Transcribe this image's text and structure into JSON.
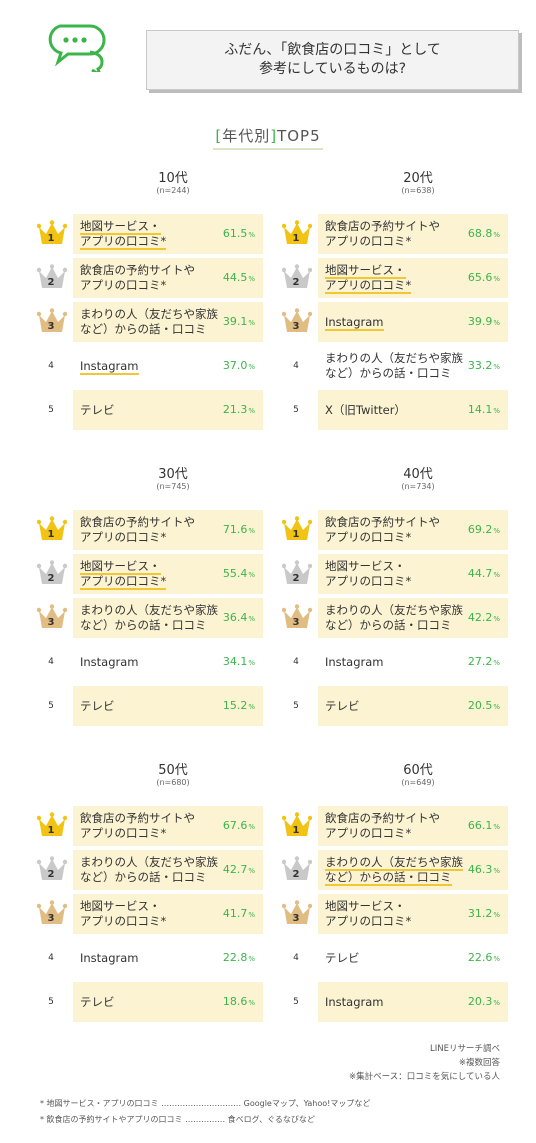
{
  "header": {
    "title_line1": "ふだん、「飲食店の口コミ」として",
    "title_line2": "参考にしているものは?",
    "icon": "chat-bubbles-icon"
  },
  "subhead": {
    "open": "[",
    "text": "年代別",
    "close": "]",
    "suffix": "TOP5"
  },
  "colors": {
    "accent": "#3bb54a",
    "highlight": "#fbf3d2",
    "gold": "#f2c313",
    "silver": "#c9c9c9",
    "bronze": "#e1bd83",
    "underline": "#f1c733"
  },
  "pct_unit": "%",
  "chart_data": [
    {
      "type": "table",
      "title": "10代",
      "n": "(n=244)",
      "rows": [
        {
          "rank": "1",
          "label": [
            "地図サービス・",
            "アプリの口コミ*"
          ],
          "value": 61.5,
          "value_text": "61.5",
          "underline": true
        },
        {
          "rank": "2",
          "label": [
            "飲食店の予約サイトや",
            "アプリの口コミ*"
          ],
          "value": 44.5,
          "value_text": "44.5",
          "underline": false
        },
        {
          "rank": "3",
          "label": [
            "まわりの人（友だちや家族",
            "など）からの話・口コミ"
          ],
          "value": 39.1,
          "value_text": "39.1",
          "underline": false
        },
        {
          "rank": "4",
          "label": [
            "Instagram"
          ],
          "value": 37.0,
          "value_text": "37.0",
          "underline": true
        },
        {
          "rank": "5",
          "label": [
            "テレビ"
          ],
          "value": 21.3,
          "value_text": "21.3",
          "underline": false
        }
      ]
    },
    {
      "type": "table",
      "title": "20代",
      "n": "(n=638)",
      "rows": [
        {
          "rank": "1",
          "label": [
            "飲食店の予約サイトや",
            "アプリの口コミ*"
          ],
          "value": 68.8,
          "value_text": "68.8",
          "underline": false
        },
        {
          "rank": "2",
          "label": [
            "地図サービス・",
            "アプリの口コミ*"
          ],
          "value": 65.6,
          "value_text": "65.6",
          "underline": true
        },
        {
          "rank": "3",
          "label": [
            "Instagram"
          ],
          "value": 39.9,
          "value_text": "39.9",
          "underline": true
        },
        {
          "rank": "4",
          "label": [
            "まわりの人（友だちや家族",
            "など）からの話・口コミ"
          ],
          "value": 33.2,
          "value_text": "33.2",
          "underline": false
        },
        {
          "rank": "5",
          "label": [
            "X（旧Twitter）"
          ],
          "value": 14.1,
          "value_text": "14.1",
          "underline": false
        }
      ]
    },
    {
      "type": "table",
      "title": "30代",
      "n": "(n=745)",
      "rows": [
        {
          "rank": "1",
          "label": [
            "飲食店の予約サイトや",
            "アプリの口コミ*"
          ],
          "value": 71.6,
          "value_text": "71.6",
          "underline": false
        },
        {
          "rank": "2",
          "label": [
            "地図サービス・",
            "アプリの口コミ*"
          ],
          "value": 55.4,
          "value_text": "55.4",
          "underline": true
        },
        {
          "rank": "3",
          "label": [
            "まわりの人（友だちや家族",
            "など）からの話・口コミ"
          ],
          "value": 36.4,
          "value_text": "36.4",
          "underline": false
        },
        {
          "rank": "4",
          "label": [
            "Instagram"
          ],
          "value": 34.1,
          "value_text": "34.1",
          "underline": false
        },
        {
          "rank": "5",
          "label": [
            "テレビ"
          ],
          "value": 15.2,
          "value_text": "15.2",
          "underline": false
        }
      ]
    },
    {
      "type": "table",
      "title": "40代",
      "n": "(n=734)",
      "rows": [
        {
          "rank": "1",
          "label": [
            "飲食店の予約サイトや",
            "アプリの口コミ*"
          ],
          "value": 69.2,
          "value_text": "69.2",
          "underline": false
        },
        {
          "rank": "2",
          "label": [
            "地図サービス・",
            "アプリの口コミ*"
          ],
          "value": 44.7,
          "value_text": "44.7",
          "underline": false
        },
        {
          "rank": "3",
          "label": [
            "まわりの人（友だちや家族",
            "など）からの話・口コミ"
          ],
          "value": 42.2,
          "value_text": "42.2",
          "underline": false
        },
        {
          "rank": "4",
          "label": [
            "Instagram"
          ],
          "value": 27.2,
          "value_text": "27.2",
          "underline": false
        },
        {
          "rank": "5",
          "label": [
            "テレビ"
          ],
          "value": 20.5,
          "value_text": "20.5",
          "underline": false
        }
      ]
    },
    {
      "type": "table",
      "title": "50代",
      "n": "(n=680)",
      "rows": [
        {
          "rank": "1",
          "label": [
            "飲食店の予約サイトや",
            "アプリの口コミ*"
          ],
          "value": 67.6,
          "value_text": "67.6",
          "underline": false
        },
        {
          "rank": "2",
          "label": [
            "まわりの人（友だちや家族",
            "など）からの話・口コミ"
          ],
          "value": 42.7,
          "value_text": "42.7",
          "underline": false
        },
        {
          "rank": "3",
          "label": [
            "地図サービス・",
            "アプリの口コミ*"
          ],
          "value": 41.7,
          "value_text": "41.7",
          "underline": false
        },
        {
          "rank": "4",
          "label": [
            "Instagram"
          ],
          "value": 22.8,
          "value_text": "22.8",
          "underline": false
        },
        {
          "rank": "5",
          "label": [
            "テレビ"
          ],
          "value": 18.6,
          "value_text": "18.6",
          "underline": false
        }
      ]
    },
    {
      "type": "table",
      "title": "60代",
      "n": "(n=649)",
      "rows": [
        {
          "rank": "1",
          "label": [
            "飲食店の予約サイトや",
            "アプリの口コミ*"
          ],
          "value": 66.1,
          "value_text": "66.1",
          "underline": false
        },
        {
          "rank": "2",
          "label": [
            "まわりの人（友だちや家族",
            "など）からの話・口コミ"
          ],
          "value": 46.3,
          "value_text": "46.3",
          "underline": true
        },
        {
          "rank": "3",
          "label": [
            "地図サービス・",
            "アプリの口コミ*"
          ],
          "value": 31.2,
          "value_text": "31.2",
          "underline": false
        },
        {
          "rank": "4",
          "label": [
            "テレビ"
          ],
          "value": 22.6,
          "value_text": "22.6",
          "underline": false
        },
        {
          "rank": "5",
          "label": [
            "Instagram"
          ],
          "value": 20.3,
          "value_text": "20.3",
          "underline": false
        }
      ]
    }
  ],
  "footer": {
    "source": "LINEリサーチ調べ",
    "note1": "※複数回答",
    "note2": "※集計ベース：口コミを気にしている人",
    "def1": "* 地図サービス・アプリの口コミ ………………………… Googleマップ、Yahoo!マップなど",
    "def2": "* 飲食店の予約サイトやアプリの口コミ …………… 食べログ、ぐるなびなど"
  }
}
